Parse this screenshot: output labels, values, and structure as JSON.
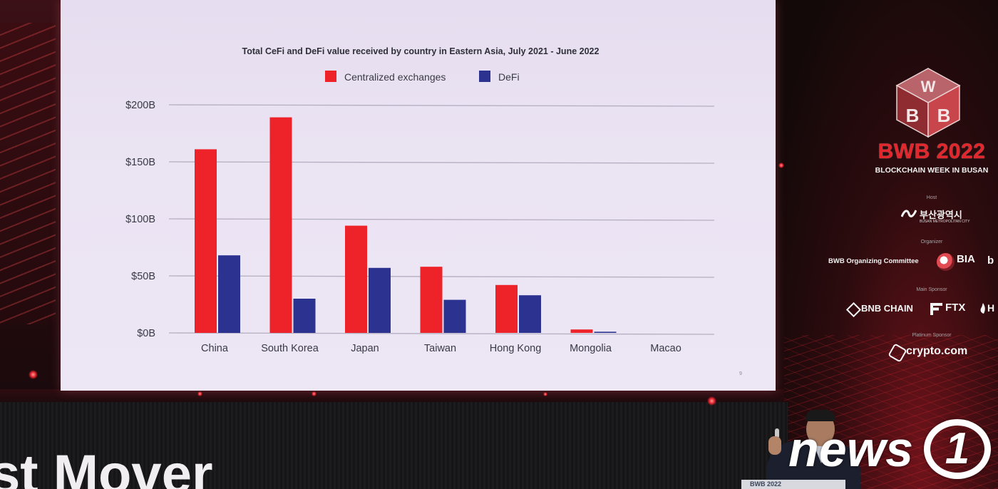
{
  "slide": {
    "page_number": "9"
  },
  "chart_data": {
    "type": "bar",
    "title": "Total CeFi and DeFi value received by country in Eastern Asia, July 2021 - June 2022",
    "xlabel": "",
    "ylabel": "",
    "categories": [
      "China",
      "South Korea",
      "Japan",
      "Taiwan",
      "Hong Kong",
      "Mongolia",
      "Macao"
    ],
    "series": [
      {
        "name": "Centralized exchanges",
        "color": "#ee2329",
        "values": [
          161,
          189,
          94,
          58,
          42,
          3,
          0
        ]
      },
      {
        "name": "DeFi",
        "color": "#2c3290",
        "values": [
          68,
          30,
          57,
          29,
          33,
          1,
          0
        ]
      }
    ],
    "yticks": [
      {
        "value": 0,
        "label": "$0B"
      },
      {
        "value": 50,
        "label": "$50B"
      },
      {
        "value": 100,
        "label": "$100B"
      },
      {
        "value": 150,
        "label": "$150B"
      },
      {
        "value": 200,
        "label": "$200B"
      }
    ],
    "ylim": [
      0,
      200
    ],
    "grid": true,
    "legend_position": "top-center"
  },
  "event": {
    "logo_letters": {
      "top": "W",
      "left": "B",
      "right": "B"
    },
    "name": "BWB 2022",
    "subtitle": "BLOCKCHAIN WEEK IN BUSAN",
    "host_label": "Host",
    "host_name": "부산광역시",
    "host_name_en": "BUSAN METROPOLITAN CITY",
    "organizer_label": "Organizer",
    "organizer_name": "BWB Organizing Committee",
    "organizer_logo": "BIA",
    "organizer_partial": "b",
    "main_sponsor_label": "Main Sponsor",
    "main_sponsor_1": "BNB CHAIN",
    "main_sponsor_2": "FTX",
    "main_sponsor_partial": "H",
    "platinum_sponsor_label": "Platinum Sponsor",
    "platinum_sponsor": "crypto.com",
    "accent_color": "#e3262c"
  },
  "stage": {
    "backdrop_text": "st Mover",
    "podium_text": "BWB 2022"
  },
  "watermark": {
    "text": "news",
    "number": "1"
  }
}
